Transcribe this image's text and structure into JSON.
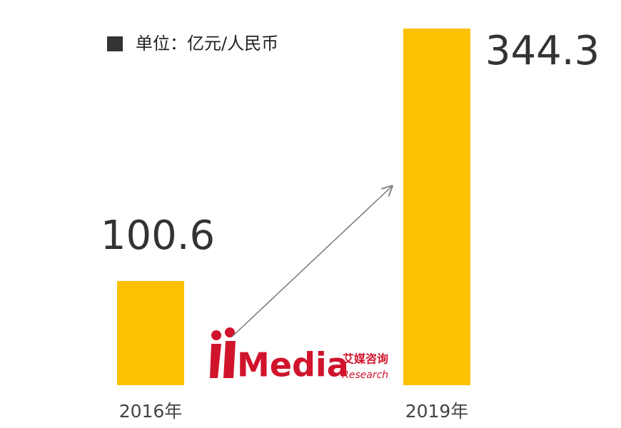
{
  "chart_data": {
    "type": "bar",
    "unit": "单位：亿元/人民币",
    "categories": [
      "2016年",
      "2019年"
    ],
    "values": [
      100.6,
      344.3
    ],
    "color": "#fcc100",
    "watermark": {
      "brand": "Media",
      "cn": "艾媒咨询",
      "sub": "Research"
    }
  }
}
